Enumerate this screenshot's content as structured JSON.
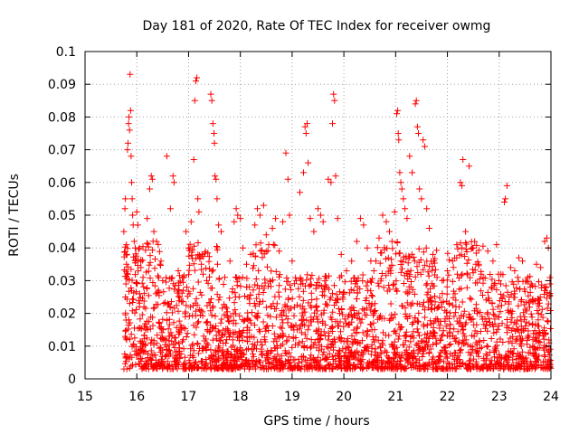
{
  "chart_data": {
    "type": "scatter",
    "title": "Day 181 of 2020, Rate Of TEC Index for receiver owmg",
    "xlabel": "GPS time / hours",
    "ylabel": "ROTI / TECUs",
    "xlim": [
      15,
      24
    ],
    "ylim": [
      0,
      0.1
    ],
    "x_ticks": [
      15,
      16,
      17,
      18,
      19,
      20,
      21,
      22,
      23,
      24
    ],
    "x_tick_labels": [
      "15",
      "16",
      "17",
      "18",
      "19",
      "20",
      "21",
      "22",
      "23",
      "24"
    ],
    "y_ticks": [
      0,
      0.01,
      0.02,
      0.03,
      0.04,
      0.05,
      0.06,
      0.07,
      0.08,
      0.09,
      0.1
    ],
    "y_tick_labels": [
      "0",
      "0.01",
      "0.02",
      "0.03",
      "0.04",
      "0.05",
      "0.06",
      "0.07",
      "0.08",
      "0.09",
      "0.1"
    ],
    "grid": true,
    "legend": "none",
    "marker": "+",
    "color": "#ff0000",
    "series": [
      {
        "name": "ROTI",
        "points": [
          [
            15.75,
            0.045
          ],
          [
            15.77,
            0.052
          ],
          [
            15.78,
            0.055
          ],
          [
            15.8,
            0.041
          ],
          [
            15.81,
            0.038
          ],
          [
            15.82,
            0.07
          ],
          [
            15.83,
            0.072
          ],
          [
            15.84,
            0.078
          ],
          [
            15.85,
            0.08
          ],
          [
            15.86,
            0.076
          ],
          [
            15.87,
            0.093
          ],
          [
            15.88,
            0.082
          ],
          [
            15.89,
            0.068
          ],
          [
            15.9,
            0.06
          ],
          [
            15.91,
            0.055
          ],
          [
            15.92,
            0.05
          ],
          [
            15.93,
            0.047
          ],
          [
            15.95,
            0.042
          ],
          [
            15.97,
            0.04
          ],
          [
            15.8,
            0.035
          ],
          [
            15.79,
            0.029
          ],
          [
            15.78,
            0.025
          ],
          [
            15.83,
            0.032
          ],
          [
            16.0,
            0.051
          ],
          [
            16.02,
            0.047
          ],
          [
            16.05,
            0.04
          ],
          [
            16.08,
            0.034
          ],
          [
            16.12,
            0.031
          ],
          [
            16.2,
            0.049
          ],
          [
            16.25,
            0.058
          ],
          [
            16.28,
            0.062
          ],
          [
            16.3,
            0.061
          ],
          [
            16.33,
            0.045
          ],
          [
            16.38,
            0.042
          ],
          [
            16.45,
            0.035
          ],
          [
            16.5,
            0.03
          ],
          [
            16.58,
            0.068
          ],
          [
            16.65,
            0.052
          ],
          [
            16.7,
            0.062
          ],
          [
            16.72,
            0.06
          ],
          [
            16.8,
            0.033
          ],
          [
            16.88,
            0.031
          ],
          [
            16.95,
            0.045
          ],
          [
            17.0,
            0.04
          ],
          [
            17.05,
            0.048
          ],
          [
            17.1,
            0.067
          ],
          [
            17.12,
            0.085
          ],
          [
            17.14,
            0.091
          ],
          [
            17.16,
            0.092
          ],
          [
            17.18,
            0.055
          ],
          [
            17.2,
            0.051
          ],
          [
            17.22,
            0.037
          ],
          [
            17.28,
            0.032
          ],
          [
            17.35,
            0.03
          ],
          [
            17.43,
            0.087
          ],
          [
            17.45,
            0.085
          ],
          [
            17.47,
            0.078
          ],
          [
            17.49,
            0.075
          ],
          [
            17.5,
            0.072
          ],
          [
            17.51,
            0.062
          ],
          [
            17.53,
            0.061
          ],
          [
            17.55,
            0.055
          ],
          [
            17.58,
            0.047
          ],
          [
            17.63,
            0.045
          ],
          [
            17.7,
            0.031
          ],
          [
            17.8,
            0.036
          ],
          [
            17.88,
            0.048
          ],
          [
            17.92,
            0.052
          ],
          [
            17.95,
            0.05
          ],
          [
            18.0,
            0.049
          ],
          [
            18.05,
            0.04
          ],
          [
            18.12,
            0.035
          ],
          [
            18.2,
            0.038
          ],
          [
            18.28,
            0.047
          ],
          [
            18.33,
            0.052
          ],
          [
            18.38,
            0.05
          ],
          [
            18.45,
            0.053
          ],
          [
            18.5,
            0.044
          ],
          [
            18.55,
            0.041
          ],
          [
            18.62,
            0.046
          ],
          [
            18.68,
            0.049
          ],
          [
            18.75,
            0.039
          ],
          [
            18.82,
            0.048
          ],
          [
            18.88,
            0.069
          ],
          [
            18.92,
            0.061
          ],
          [
            18.95,
            0.05
          ],
          [
            19.0,
            0.036
          ],
          [
            19.08,
            0.03
          ],
          [
            19.15,
            0.057
          ],
          [
            19.22,
            0.063
          ],
          [
            19.25,
            0.077
          ],
          [
            19.27,
            0.075
          ],
          [
            19.29,
            0.078
          ],
          [
            19.31,
            0.066
          ],
          [
            19.35,
            0.049
          ],
          [
            19.42,
            0.045
          ],
          [
            19.5,
            0.052
          ],
          [
            19.55,
            0.05
          ],
          [
            19.6,
            0.048
          ],
          [
            19.7,
            0.061
          ],
          [
            19.75,
            0.06
          ],
          [
            19.78,
            0.078
          ],
          [
            19.8,
            0.087
          ],
          [
            19.82,
            0.085
          ],
          [
            19.84,
            0.062
          ],
          [
            19.88,
            0.049
          ],
          [
            19.95,
            0.038
          ],
          [
            20.05,
            0.033
          ],
          [
            20.15,
            0.036
          ],
          [
            20.25,
            0.042
          ],
          [
            20.32,
            0.049
          ],
          [
            20.38,
            0.047
          ],
          [
            20.45,
            0.04
          ],
          [
            20.52,
            0.036
          ],
          [
            20.58,
            0.033
          ],
          [
            20.68,
            0.043
          ],
          [
            20.75,
            0.05
          ],
          [
            20.82,
            0.048
          ],
          [
            20.88,
            0.045
          ],
          [
            20.93,
            0.042
          ],
          [
            20.98,
            0.051
          ],
          [
            21.02,
            0.081
          ],
          [
            21.04,
            0.082
          ],
          [
            21.05,
            0.075
          ],
          [
            21.06,
            0.073
          ],
          [
            21.08,
            0.063
          ],
          [
            21.1,
            0.06
          ],
          [
            21.12,
            0.058
          ],
          [
            21.15,
            0.055
          ],
          [
            21.18,
            0.052
          ],
          [
            21.22,
            0.049
          ],
          [
            21.27,
            0.068
          ],
          [
            21.32,
            0.063
          ],
          [
            21.38,
            0.084
          ],
          [
            21.4,
            0.085
          ],
          [
            21.42,
            0.077
          ],
          [
            21.44,
            0.075
          ],
          [
            21.46,
            0.058
          ],
          [
            21.5,
            0.055
          ],
          [
            21.53,
            0.073
          ],
          [
            21.56,
            0.071
          ],
          [
            21.6,
            0.052
          ],
          [
            21.65,
            0.046
          ],
          [
            21.72,
            0.038
          ],
          [
            21.8,
            0.031
          ],
          [
            21.9,
            0.03
          ],
          [
            22.0,
            0.033
          ],
          [
            22.1,
            0.036
          ],
          [
            22.18,
            0.041
          ],
          [
            22.25,
            0.06
          ],
          [
            22.28,
            0.059
          ],
          [
            22.3,
            0.067
          ],
          [
            22.35,
            0.045
          ],
          [
            22.42,
            0.065
          ],
          [
            22.48,
            0.04
          ],
          [
            22.55,
            0.035
          ],
          [
            22.65,
            0.032
          ],
          [
            22.78,
            0.039
          ],
          [
            22.88,
            0.036
          ],
          [
            22.95,
            0.041
          ],
          [
            23.03,
            0.029
          ],
          [
            23.1,
            0.054
          ],
          [
            23.12,
            0.055
          ],
          [
            23.15,
            0.059
          ],
          [
            23.22,
            0.034
          ],
          [
            23.3,
            0.033
          ],
          [
            23.38,
            0.037
          ],
          [
            23.45,
            0.036
          ],
          [
            23.55,
            0.031
          ],
          [
            23.62,
            0.029
          ],
          [
            23.72,
            0.035
          ],
          [
            23.8,
            0.034
          ],
          [
            23.88,
            0.042
          ],
          [
            23.92,
            0.043
          ],
          [
            23.95,
            0.04
          ],
          [
            23.98,
            0.029
          ]
        ]
      }
    ],
    "dense_band": {
      "note": "thousands of overlapping points between 0.003 and ~0.03 TECU across 15.75-24 h",
      "x_range": [
        15.75,
        24.0
      ],
      "y_range": [
        0.003,
        0.032
      ],
      "count": 2600
    }
  }
}
